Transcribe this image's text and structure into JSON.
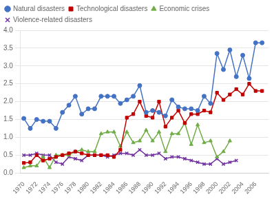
{
  "chart_data": {
    "type": "line",
    "x": [
      1970,
      1971,
      1972,
      1973,
      1974,
      1975,
      1976,
      1977,
      1978,
      1979,
      1980,
      1981,
      1982,
      1983,
      1984,
      1985,
      1986,
      1987,
      1988,
      1989,
      1990,
      1991,
      1992,
      1993,
      1994,
      1995,
      1996,
      1997,
      1998,
      1999,
      2000,
      2001,
      2002,
      2003,
      2004,
      2005,
      2006,
      2007
    ],
    "series": [
      {
        "name": "Natural disasters",
        "color": "#4472C4",
        "marker": "circle",
        "values": [
          1.53,
          1.25,
          1.5,
          1.45,
          1.45,
          1.25,
          1.7,
          1.9,
          2.15,
          1.65,
          1.8,
          1.8,
          2.15,
          2.15,
          2.15,
          1.95,
          2.05,
          2.15,
          2.45,
          1.7,
          1.75,
          1.7,
          1.6,
          2.05,
          1.85,
          1.8,
          1.8,
          1.75,
          2.15,
          1.95,
          3.35,
          2.9,
          3.45,
          2.7,
          3.3,
          2.65,
          3.65,
          3.65
        ]
      },
      {
        "name": "Technological disasters",
        "color": "#C00000",
        "marker": "square",
        "values": [
          0.28,
          0.3,
          0.5,
          0.35,
          0.4,
          0.45,
          0.5,
          0.55,
          0.6,
          0.55,
          0.5,
          0.5,
          0.5,
          0.5,
          0.45,
          0.65,
          1.55,
          1.65,
          2.0,
          1.6,
          1.55,
          2.0,
          1.3,
          1.55,
          1.75,
          1.4,
          1.65,
          1.65,
          1.75,
          1.7,
          2.25,
          2.05,
          2.2,
          2.35,
          2.2,
          2.5,
          2.3,
          2.3
        ]
      },
      {
        "name": "Economic crises",
        "color": "#70AD47",
        "marker": "triangle",
        "values": [
          0.15,
          0.2,
          0.2,
          0.45,
          0.15,
          0.5,
          0.5,
          0.5,
          0.6,
          0.65,
          0.6,
          0.6,
          1.1,
          1.15,
          1.15,
          0.75,
          1.15,
          0.85,
          0.9,
          1.2,
          0.9,
          1.15,
          0.6,
          1.1,
          1.1,
          1.4,
          0.8,
          1.35,
          0.85,
          0.9,
          0.45,
          0.6,
          0.9,
          null,
          null,
          null,
          null,
          null
        ]
      },
      {
        "name": "Violence-related disasters",
        "color": "#7030A0",
        "marker": "x",
        "values": [
          0.5,
          0.5,
          0.55,
          0.5,
          0.5,
          0.3,
          0.25,
          0.45,
          0.4,
          0.35,
          0.5,
          0.5,
          0.5,
          0.45,
          0.5,
          0.55,
          0.55,
          0.5,
          0.65,
          0.5,
          0.5,
          0.55,
          0.4,
          0.45,
          0.45,
          0.4,
          0.35,
          0.3,
          0.25,
          0.25,
          0.4,
          0.25,
          0.3,
          0.35,
          null,
          null,
          null,
          null
        ]
      }
    ],
    "xlim": [
      1969.5,
      2008.0
    ],
    "xticks": [
      1970,
      1972,
      1974,
      1976,
      1978,
      1980,
      1982,
      1984,
      1986,
      1988,
      1990,
      1992,
      1994,
      1996,
      1998,
      2000,
      2002,
      2004,
      2006
    ],
    "ylim": [
      0,
      4
    ],
    "yticks": [
      {
        "value": 0,
        "label": "0.0"
      },
      0.5,
      {
        "value": 1.0,
        "label": "1.0"
      },
      1.5,
      {
        "value": 2.0,
        "label": "2.0"
      },
      2.5,
      {
        "value": 3.0,
        "label": "3.0"
      },
      3.5,
      {
        "value": 4.0,
        "label": "4.0"
      }
    ],
    "grid": "y",
    "legend": "upper left"
  }
}
